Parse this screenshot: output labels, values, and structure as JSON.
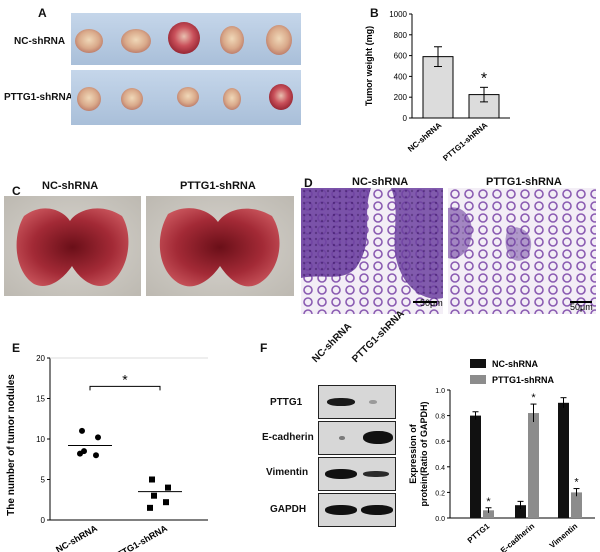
{
  "panels": {
    "A": {
      "label": "A",
      "rows": [
        "NC-shRNA",
        "PTTG1-shRNA"
      ]
    },
    "B": {
      "label": "B"
    },
    "C": {
      "label": "C",
      "left": "NC-shRNA",
      "right": "PTTG1-shRNA"
    },
    "D": {
      "label": "D",
      "left": "NC-shRNA",
      "right": "PTTG1-shRNA",
      "scale_left": "50μm",
      "scale_right": "50μm"
    },
    "E": {
      "label": "E"
    },
    "F": {
      "label": "F",
      "lanes": [
        "NC-shRNA",
        "PTTG1-shRNA"
      ],
      "proteins": [
        "PTTG1",
        "E-cadherin",
        "Vimentin",
        "GAPDH"
      ]
    }
  },
  "colors": {
    "bar_light": "#dcdcdc",
    "bar_black": "#111111",
    "bar_gray": "#8c8c8c",
    "tissue": "#a32a36",
    "stain": "#7b4fa6"
  },
  "chart_data": [
    {
      "id": "B",
      "type": "bar",
      "categories": [
        "NC-shRNA",
        "PTTG1-shRNA"
      ],
      "values": [
        590,
        225
      ],
      "errors": [
        95,
        70
      ],
      "ylabel": "Tumor weight (mg)",
      "ylim": [
        0,
        1000
      ],
      "yticks": [
        0,
        200,
        400,
        600,
        800,
        1000
      ],
      "annotation": "*"
    },
    {
      "id": "E",
      "type": "scatter",
      "categories": [
        "NC-shRNA",
        "PTTG1-shRNA"
      ],
      "points": {
        "NC-shRNA": [
          11,
          10.2,
          8.5,
          8,
          8.2
        ],
        "PTTG1-shRNA": [
          5,
          4,
          3,
          2.2,
          1.5
        ]
      },
      "means": [
        9.2,
        3.5
      ],
      "ylabel": "The number of tumor nodules",
      "ylim": [
        0,
        20
      ],
      "yticks": [
        0,
        5,
        10,
        15,
        20
      ],
      "annotation": "*"
    },
    {
      "id": "F",
      "type": "bar",
      "categories": [
        "PTTG1",
        "E-cadherin",
        "Vimentin"
      ],
      "series": [
        {
          "name": "NC-shRNA",
          "values": [
            0.8,
            0.1,
            0.9
          ],
          "errors": [
            0.03,
            0.03,
            0.04
          ]
        },
        {
          "name": "PTTG1-shRNA",
          "values": [
            0.06,
            0.82,
            0.2
          ],
          "errors": [
            0.02,
            0.07,
            0.03
          ]
        }
      ],
      "ylabel": "Expression of protein(Ratio of GAPDH)",
      "ylim": [
        0,
        1.0
      ],
      "yticks": [
        0.0,
        0.2,
        0.4,
        0.6,
        0.8,
        1.0
      ],
      "annotations": [
        "*",
        "*",
        "*"
      ],
      "legend": "top-right"
    }
  ]
}
